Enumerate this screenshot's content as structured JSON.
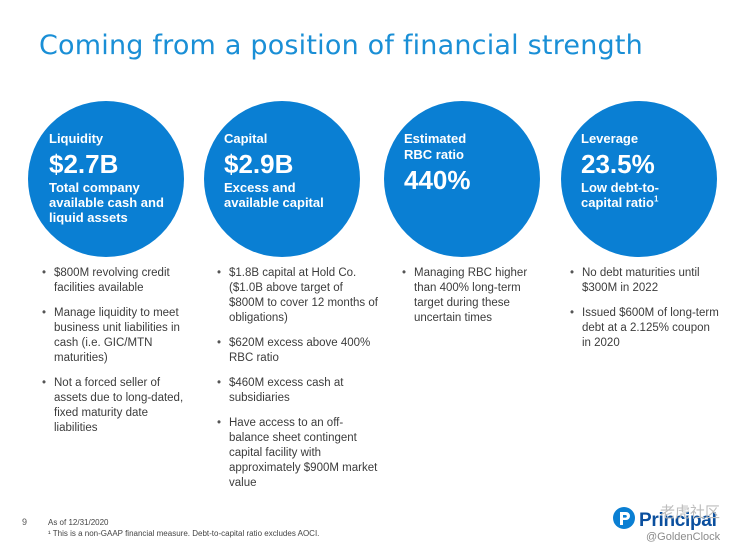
{
  "title": "Coming from a position of financial strength",
  "circles": [
    {
      "label": "Liquidity",
      "value": "$2.7B",
      "desc": "Total company available cash and liquid assets"
    },
    {
      "label": "Capital",
      "value": "$2.9B",
      "desc": "Excess and available capital"
    },
    {
      "label": "Estimated RBC ratio",
      "value": "440%",
      "desc": ""
    },
    {
      "label": "Leverage",
      "value": "23.5%",
      "desc": "Low debt-to-capital ratio",
      "desc_sup": "1"
    }
  ],
  "bullets": [
    [
      "$800M revolving credit facilities available",
      "Manage liquidity to meet business unit liabilities in cash (i.e. GIC/MTN maturities)",
      "Not a forced seller of assets due to long-dated, fixed maturity date liabilities"
    ],
    [
      "$1.8B capital at Hold Co. ($1.0B above target of $800M to cover 12 months of obligations)",
      "$620M excess above 400% RBC ratio",
      "$460M excess cash at subsidiaries",
      "Have access to an off-balance sheet contingent capital facility with approximately $900M market value"
    ],
    [
      "Managing RBC higher than 400% long-term target during these uncertain times"
    ],
    [
      "No debt maturities until $300M in 2022",
      "Issued $600M of long-term debt at a 2.125% coupon in 2020"
    ]
  ],
  "footer": {
    "page_number": "9",
    "as_of": "As of 12/31/2020",
    "footnote": "¹ This is a non-GAAP financial measure. Debt-to-capital ratio excludes AOCI."
  },
  "logo": {
    "text": "Principal",
    "icon": "principal-logo-icon",
    "color": "#0a4f9e"
  },
  "watermark": {
    "cn": "老虎社区",
    "handle": "@GoldenClock"
  },
  "colors": {
    "accent": "#0a7fd3",
    "title": "#1a8fd6"
  }
}
